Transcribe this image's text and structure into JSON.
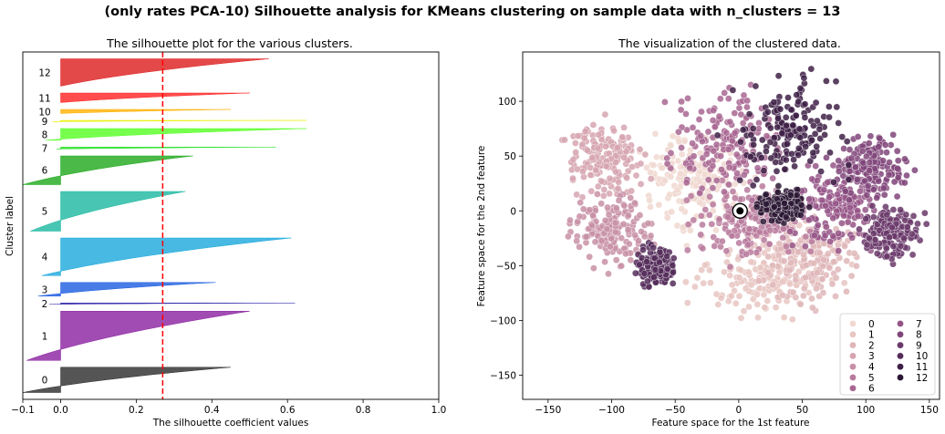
{
  "suptitle": "(only rates PCA-10) Silhouette analysis for KMeans clustering on sample data with n_clusters = 13",
  "chart_data": [
    {
      "type": "area",
      "title": "The silhouette plot for the various clusters.",
      "xlabel": "The silhouette coefficient values",
      "ylabel": "Cluster label",
      "xlim": [
        -0.1,
        1.0
      ],
      "xticks": [
        -0.1,
        0.0,
        0.2,
        0.4,
        0.6,
        0.8,
        1.0
      ],
      "xtick_labels": [
        "−0.1",
        "0.0",
        "0.2",
        "0.4",
        "0.6",
        "0.8",
        "1.0"
      ],
      "silhouette_avg": 0.27,
      "silhouette_avg_line": "red dashed",
      "clusters": [
        {
          "label": "0",
          "size": 37,
          "min": -0.1,
          "max": 0.45,
          "color": "#2a2a2a"
        },
        {
          "label": "1",
          "size": 72,
          "min": -0.09,
          "max": 0.5,
          "color": "#8a1fa0"
        },
        {
          "label": "2",
          "size": 2,
          "min": -0.03,
          "max": 0.62,
          "color": "#2a1fa8"
        },
        {
          "label": "3",
          "size": 20,
          "min": -0.06,
          "max": 0.41,
          "color": "#1a5be0"
        },
        {
          "label": "4",
          "size": 55,
          "min": -0.05,
          "max": 0.61,
          "color": "#1aa8dc"
        },
        {
          "label": "5",
          "size": 58,
          "min": -0.08,
          "max": 0.33,
          "color": "#1ab8a0"
        },
        {
          "label": "6",
          "size": 42,
          "min": -0.1,
          "max": 0.35,
          "color": "#1da81a"
        },
        {
          "label": "7",
          "size": 3,
          "min": -0.01,
          "max": 0.57,
          "color": "#22e022"
        },
        {
          "label": "8",
          "size": 17,
          "min": -0.04,
          "max": 0.65,
          "color": "#55ff22"
        },
        {
          "label": "9",
          "size": 2,
          "min": -0.02,
          "max": 0.65,
          "color": "#e8f000"
        },
        {
          "label": "10",
          "size": 6,
          "min": 0.0,
          "max": 0.45,
          "color": "#ffb000"
        },
        {
          "label": "11",
          "size": 14,
          "min": 0.0,
          "max": 0.5,
          "color": "#ff2020"
        },
        {
          "label": "12",
          "size": 40,
          "min": 0.0,
          "max": 0.55,
          "color": "#dd1c1c"
        }
      ]
    },
    {
      "type": "scatter",
      "title": "The visualization of the clustered data.",
      "xlabel": "Feature space for the 1st feature",
      "ylabel": "Feature space for the 2nd feature",
      "xlim": [
        -170,
        158
      ],
      "ylim": [
        -172,
        145
      ],
      "xticks": [
        -150,
        -100,
        -50,
        0,
        50,
        100,
        150
      ],
      "xtick_labels": [
        "−150",
        "−100",
        "−50",
        "0",
        "50",
        "100",
        "150"
      ],
      "yticks": [
        -150,
        -100,
        -50,
        0,
        50,
        100
      ],
      "ytick_labels": [
        "−150",
        "−100",
        "−50",
        "0",
        "50",
        "100"
      ],
      "centroid": {
        "x": 1,
        "y": 0
      },
      "legend": {
        "placement": "lower-right",
        "columns": 2,
        "entries": [
          {
            "label": "0",
            "color": "#f0d8d0"
          },
          {
            "label": "1",
            "color": "#e8c6c2"
          },
          {
            "label": "2",
            "color": "#dfb6b8"
          },
          {
            "label": "3",
            "color": "#d6a4b0"
          },
          {
            "label": "4",
            "color": "#c890a6"
          },
          {
            "label": "5",
            "color": "#b87a9c"
          },
          {
            "label": "6",
            "color": "#a86692"
          },
          {
            "label": "7",
            "color": "#955587"
          },
          {
            "label": "8",
            "color": "#80457a"
          },
          {
            "label": "9",
            "color": "#6a386a"
          },
          {
            "label": "10",
            "color": "#542b59"
          },
          {
            "label": "11",
            "color": "#3e2047"
          },
          {
            "label": "12",
            "color": "#2b1734"
          }
        ]
      },
      "regions": [
        {
          "cluster": 0,
          "cx": -35,
          "cy": 25,
          "rx": 30,
          "ry": 35
        },
        {
          "cluster": 1,
          "cx": 20,
          "cy": -60,
          "rx": 45,
          "ry": 30
        },
        {
          "cluster": 2,
          "cx": 55,
          "cy": -40,
          "rx": 30,
          "ry": 40
        },
        {
          "cluster": 3,
          "cx": -105,
          "cy": 45,
          "rx": 25,
          "ry": 30
        },
        {
          "cluster": 4,
          "cx": -100,
          "cy": -15,
          "rx": 28,
          "ry": 28
        },
        {
          "cluster": 5,
          "cx": 10,
          "cy": -10,
          "rx": 40,
          "ry": 30
        },
        {
          "cluster": 6,
          "cx": -10,
          "cy": 60,
          "rx": 40,
          "ry": 40
        },
        {
          "cluster": 7,
          "cx": 75,
          "cy": 5,
          "rx": 30,
          "ry": 28
        },
        {
          "cluster": 8,
          "cx": 105,
          "cy": 40,
          "rx": 25,
          "ry": 25
        },
        {
          "cluster": 9,
          "cx": 120,
          "cy": -20,
          "rx": 20,
          "ry": 20
        },
        {
          "cluster": 10,
          "cx": -65,
          "cy": -50,
          "rx": 12,
          "ry": 15
        },
        {
          "cluster": 11,
          "cx": 40,
          "cy": 70,
          "rx": 35,
          "ry": 40
        },
        {
          "cluster": 12,
          "cx": 35,
          "cy": 5,
          "rx": 15,
          "ry": 12
        }
      ]
    }
  ]
}
